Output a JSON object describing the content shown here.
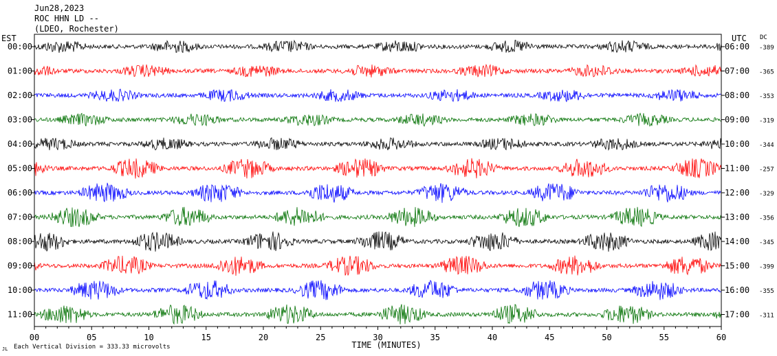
{
  "header": {
    "date": "Jun28,2023",
    "station": "ROC HHN LD --",
    "network": "(LDEO, Rochester)"
  },
  "labels": {
    "left_tz": "EST",
    "right_tz": "UTC",
    "dc": "DC",
    "xlabel": "TIME (MINUTES)",
    "scale_note": "Each Vertical Division =  333.33 microvolts"
  },
  "chart_data": {
    "type": "line",
    "title": "ROC HHN LD --",
    "xlabel": "TIME (MINUTES)",
    "xlim": [
      0,
      60
    ],
    "x_ticks": [
      "00",
      "05",
      "10",
      "15",
      "20",
      "25",
      "30",
      "35",
      "40",
      "45",
      "50",
      "55",
      "60"
    ],
    "trace_colors": [
      "#000000",
      "#ff0000",
      "#0000ff",
      "#007000"
    ],
    "rows": [
      {
        "est": "00:00",
        "utc": "06:00",
        "dc": "-389"
      },
      {
        "est": "01:00",
        "utc": "07:00",
        "dc": "-365"
      },
      {
        "est": "02:00",
        "utc": "08:00",
        "dc": "-353"
      },
      {
        "est": "03:00",
        "utc": "09:00",
        "dc": "-319"
      },
      {
        "est": "04:00",
        "utc": "10:00",
        "dc": "-344"
      },
      {
        "est": "05:00",
        "utc": "11:00",
        "dc": "-257"
      },
      {
        "est": "06:00",
        "utc": "12:00",
        "dc": "-329"
      },
      {
        "est": "07:00",
        "utc": "13:00",
        "dc": "-356"
      },
      {
        "est": "08:00",
        "utc": "14:00",
        "dc": "-345"
      },
      {
        "est": "09:00",
        "utc": "15:00",
        "dc": "-399"
      },
      {
        "est": "10:00",
        "utc": "16:00",
        "dc": "-355"
      },
      {
        "est": "11:00",
        "utc": "17:00",
        "dc": "-311"
      }
    ],
    "scale_microvolts_per_division": 333.33
  }
}
